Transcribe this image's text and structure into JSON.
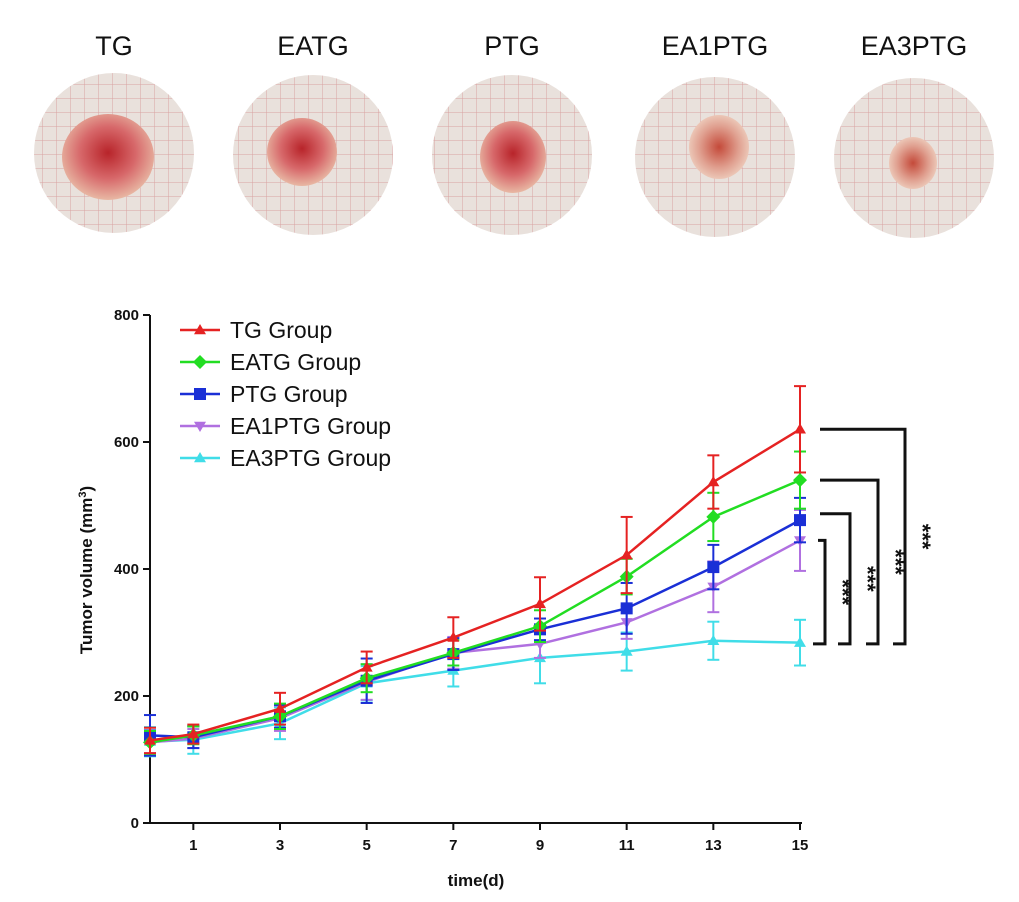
{
  "photos": {
    "labels": [
      "TG",
      "EATG",
      "PTG",
      "EA1PTG",
      "EA3PTG"
    ]
  },
  "chart_data": {
    "type": "line",
    "title": "",
    "xlabel": "time(d)",
    "ylabel": "Tumor volume (mm³)",
    "ylabel_main": "Tumor volume (mm",
    "ylabel_sup": "3",
    "ylabel_close": ")",
    "xlim": [
      0,
      15
    ],
    "ylim": [
      0,
      800
    ],
    "x_ticks": [
      1,
      3,
      5,
      7,
      9,
      11,
      13,
      15
    ],
    "y_ticks": [
      0,
      200,
      400,
      600,
      800
    ],
    "legend_position": "top-left",
    "x": [
      0,
      1,
      3,
      5,
      7,
      9,
      11,
      13,
      15
    ],
    "series": [
      {
        "name": "TG Group",
        "color": "#e52222",
        "marker": "triangle-up",
        "values": [
          130,
          140,
          180,
          245,
          292,
          345,
          422,
          537,
          620
        ],
        "errors": [
          20,
          15,
          25,
          25,
          32,
          42,
          60,
          42,
          68
        ]
      },
      {
        "name": "EATG Group",
        "color": "#22dd22",
        "marker": "diamond",
        "values": [
          127,
          138,
          168,
          228,
          268,
          310,
          388,
          482,
          540
        ],
        "errors": [
          18,
          14,
          20,
          22,
          20,
          25,
          28,
          38,
          45
        ]
      },
      {
        "name": "PTG Group",
        "color": "#1a2fd6",
        "marker": "square",
        "values": [
          138,
          135,
          168,
          224,
          266,
          305,
          338,
          403,
          477
        ],
        "errors": [
          32,
          17,
          18,
          35,
          25,
          17,
          40,
          35,
          35
        ]
      },
      {
        "name": "EA1PTG Group",
        "color": "#b070e0",
        "marker": "triangle-down",
        "values": [
          127,
          133,
          165,
          222,
          268,
          282,
          316,
          372,
          445
        ],
        "errors": [
          17,
          15,
          20,
          28,
          25,
          22,
          26,
          40,
          48
        ]
      },
      {
        "name": "EA3PTG Group",
        "color": "#40dde8",
        "marker": "triangle-up",
        "values": [
          128,
          131,
          157,
          220,
          240,
          260,
          270,
          287,
          284
        ],
        "errors": [
          23,
          22,
          25,
          27,
          25,
          40,
          30,
          30,
          36
        ]
      }
    ],
    "significance": [
      {
        "label": "***",
        "y_top": 620,
        "y_bottom": 282
      },
      {
        "label": "***",
        "y_top": 540,
        "y_bottom": 282
      },
      {
        "label": "***",
        "y_top": 487,
        "y_bottom": 282
      },
      {
        "label": "***",
        "y_top": 445,
        "y_bottom": 282
      }
    ]
  }
}
